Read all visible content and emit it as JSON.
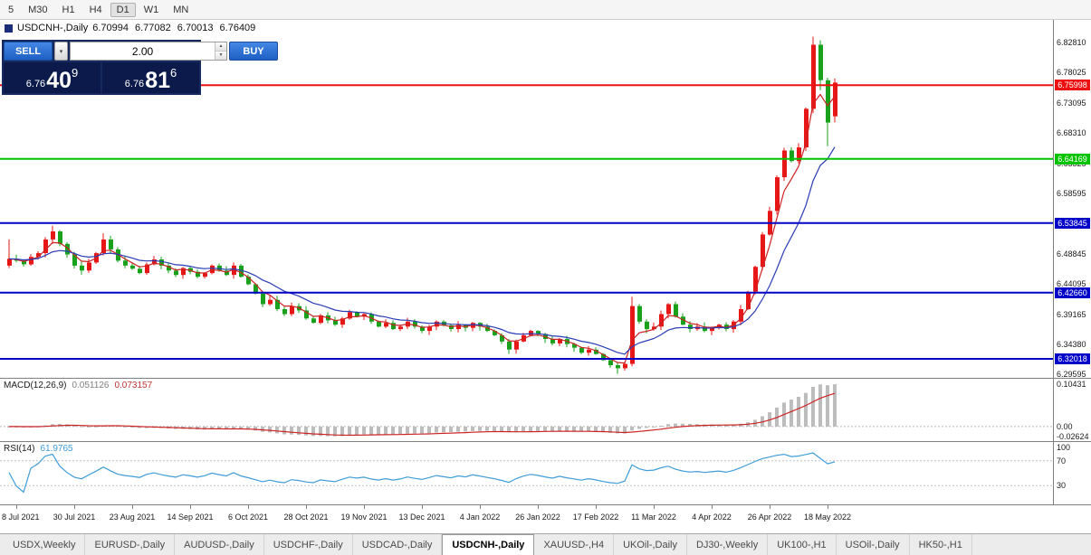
{
  "toolbar": {
    "timeframes": [
      "5",
      "M30",
      "H1",
      "H4",
      "D1",
      "W1",
      "MN"
    ],
    "active": "D1"
  },
  "chart": {
    "symbol_period": "USDCNH-,Daily",
    "open": "6.70994",
    "high": "6.77082",
    "low": "6.70013",
    "close": "6.76409"
  },
  "icons": {
    "dropdown": "▾",
    "spin_up": "▲",
    "spin_down": "▼"
  },
  "trade_panel": {
    "sell_label": "SELL",
    "buy_label": "BUY",
    "volume": "2.00",
    "sell_price": {
      "big": "6.76",
      "mid": "40",
      "sup": "9"
    },
    "buy_price": {
      "big": "6.76",
      "mid": "81",
      "sup": "6"
    }
  },
  "price_axis": {
    "ticks": [
      "6.82810",
      "6.78025",
      "6.73095",
      "6.68310",
      "6.63325",
      "6.58595",
      "6.48845",
      "6.44095",
      "6.39165",
      "6.34380",
      "6.29595"
    ]
  },
  "hlines": [
    {
      "value": 6.75998,
      "label": "6.75998",
      "color": "#ee1111"
    },
    {
      "value": 6.64169,
      "label": "6.64169",
      "color": "#00c400"
    },
    {
      "value": 6.53845,
      "label": "6.53845",
      "color": "#0202c8"
    },
    {
      "value": 6.4266,
      "label": "6.42660",
      "color": "#0202c8"
    },
    {
      "value": 6.32018,
      "label": "6.32018",
      "color": "#0202c8"
    }
  ],
  "chart_data": {
    "type": "candlestick",
    "symbol": "USDCNH-",
    "period": "Daily",
    "y_range": [
      6.2896,
      6.865
    ],
    "up_color": "#e81717",
    "down_color": "#18a21c",
    "ma_fast": {
      "period": 4,
      "color": "#cc2222"
    },
    "ma_slow": {
      "period": 12,
      "color": "#2a3cb4"
    },
    "x_labels": [
      "8 Jul 2021",
      "30 Jul 2021",
      "23 Aug 2021",
      "14 Sep 2021",
      "6 Oct 2021",
      "28 Oct 2021",
      "19 Nov 2021",
      "13 Dec 2021",
      "4 Jan 2022",
      "26 Jan 2022",
      "17 Feb 2022",
      "11 Mar 2022",
      "4 Apr 2022",
      "26 Apr 2022",
      "18 May 2022"
    ],
    "x_label_indices": [
      1,
      9,
      17,
      25,
      33,
      41,
      49,
      57,
      65,
      73,
      81,
      89,
      97,
      105,
      113
    ],
    "closes": [
      6.481,
      6.478,
      6.472,
      6.484,
      6.49,
      6.512,
      6.525,
      6.505,
      6.488,
      6.47,
      6.462,
      6.475,
      6.49,
      6.512,
      6.496,
      6.478,
      6.47,
      6.465,
      6.458,
      6.472,
      6.48,
      6.47,
      6.462,
      6.455,
      6.466,
      6.46,
      6.452,
      6.458,
      6.47,
      6.462,
      6.455,
      6.47,
      6.452,
      6.44,
      6.425,
      6.408,
      6.415,
      6.4,
      6.392,
      6.405,
      6.398,
      6.385,
      6.378,
      6.39,
      6.382,
      6.375,
      6.385,
      6.395,
      6.388,
      6.392,
      6.38,
      6.372,
      6.378,
      6.368,
      6.372,
      6.38,
      6.372,
      6.365,
      6.372,
      6.38,
      6.374,
      6.368,
      6.375,
      6.37,
      6.378,
      6.372,
      6.365,
      6.358,
      6.348,
      6.335,
      6.348,
      6.358,
      6.365,
      6.36,
      6.352,
      6.345,
      6.352,
      6.344,
      6.338,
      6.33,
      6.335,
      6.328,
      6.318,
      6.31,
      6.305,
      6.312,
      6.405,
      6.38,
      6.368,
      6.372,
      6.392,
      6.408,
      6.388,
      6.375,
      6.368,
      6.372,
      6.365,
      6.37,
      6.375,
      6.368,
      6.38,
      6.4,
      6.428,
      6.468,
      6.52,
      6.558,
      6.612,
      6.655,
      6.638,
      6.66,
      6.722,
      6.825,
      6.768,
      6.7,
      6.76409
    ],
    "candle_overrides": {
      "0": [
        6.47,
        6.512,
        6.466,
        6.481
      ],
      "6": [
        6.512,
        6.534,
        6.505,
        6.525
      ],
      "13": [
        6.49,
        6.522,
        6.486,
        6.512
      ],
      "69": [
        6.348,
        6.352,
        6.328,
        6.335
      ],
      "84": [
        6.31,
        6.315,
        6.296,
        6.305
      ],
      "86": [
        6.312,
        6.42,
        6.308,
        6.405
      ],
      "111": [
        6.722,
        6.838,
        6.715,
        6.825
      ],
      "112": [
        6.825,
        6.832,
        6.752,
        6.768
      ],
      "113": [
        6.768,
        6.772,
        6.662,
        6.7
      ],
      "114": [
        6.70994,
        6.77082,
        6.70013,
        6.76409
      ]
    },
    "indicators": {
      "macd": {
        "label": "MACD(12,26,9)",
        "value_main": "0.051126",
        "value_signal": "0.073157",
        "params": [
          12,
          26,
          9
        ],
        "axis_ticks": [
          "0.10431",
          "0.00",
          "-0.02624"
        ],
        "y_range": [
          -0.035,
          0.115
        ],
        "hist_color": "#bdbdbd",
        "signal_color": "#cc2222"
      },
      "rsi": {
        "label": "RSI(14)",
        "value": "61.9765",
        "period": 14,
        "levels": [
          70,
          30
        ],
        "axis_ticks": [
          "100",
          "70",
          "30"
        ],
        "y_range": [
          0,
          100
        ],
        "line_color": "#3f9dd8"
      }
    }
  },
  "tab_bar": {
    "active": "USDCNH-,Daily",
    "tabs": [
      "USDX,Weekly",
      "EURUSD-,Daily",
      "AUDUSD-,Daily",
      "USDCHF-,Daily",
      "USDCAD-,Daily",
      "USDCNH-,Daily",
      "XAUUSD-,H4",
      "UKOil-,Daily",
      "DJ30-,Weekly",
      "UK100-,H1",
      "USOil-,Daily",
      "HK50-,H1"
    ]
  }
}
